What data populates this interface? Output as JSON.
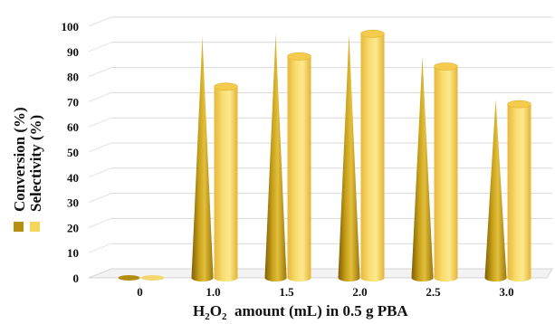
{
  "chart_data": {
    "type": "bar",
    "categories": [
      "0",
      "1.0",
      "1.5",
      "2.0",
      "2.5",
      "3.0"
    ],
    "series": [
      {
        "name": "Conversion (%)",
        "shape": "cone",
        "color": "#C9A11A",
        "values": [
          0,
          96,
          97,
          97,
          88,
          71
        ]
      },
      {
        "name": "Selectivity (%)",
        "shape": "cylinder",
        "color": "#F6D55C",
        "values": [
          0,
          76,
          88,
          97,
          84,
          69
        ]
      }
    ],
    "xlabel": {
      "main": "H",
      "sub1": "2",
      "mid": "O",
      "sub2": "2",
      "rest": "  amount (mL) in 0.5 g PBA"
    },
    "ylabel": "",
    "yticks": [
      "0",
      "10",
      "20",
      "30",
      "40",
      "50",
      "60",
      "70",
      "80",
      "90",
      "100"
    ],
    "ylim": [
      0,
      100
    ],
    "grid": true,
    "legend_position": "left-vertical"
  }
}
